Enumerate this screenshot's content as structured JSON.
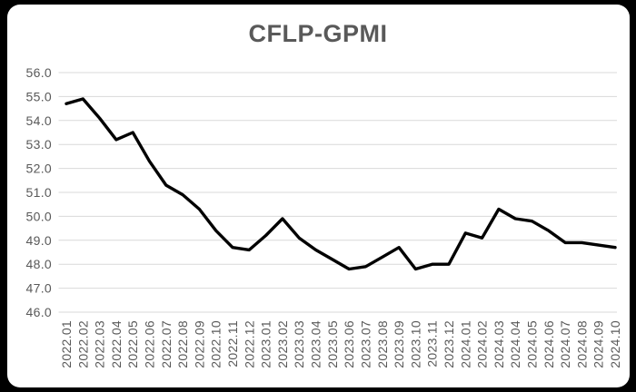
{
  "title": "CFLP-GPMI",
  "style": {
    "background": "#000000",
    "panel_background": "#ffffff",
    "title_color": "#595959",
    "tick_label_color": "#595959",
    "gridline_color": "#d9d9d9",
    "line_color": "#000000"
  },
  "chart_data": {
    "type": "line",
    "title": "CFLP-GPMI",
    "xlabel": "",
    "ylabel": "",
    "ylim": [
      46.0,
      56.0
    ],
    "ytick_step": 1.0,
    "ytick_labels": [
      "56.0",
      "55.0",
      "54.0",
      "53.0",
      "52.0",
      "51.0",
      "50.0",
      "49.0",
      "48.0",
      "47.0",
      "46.0"
    ],
    "grid": "horizontal",
    "legend": "none",
    "x_label_rotation": -90,
    "x": [
      "2022.01",
      "2022.02",
      "2022.03",
      "2022.04",
      "2022.05",
      "2022.06",
      "2022.07",
      "2022.08",
      "2022.09",
      "2022.10",
      "2022.11",
      "2022.12",
      "2023.01",
      "2023.02",
      "2023.03",
      "2023.04",
      "2023.05",
      "2023.06",
      "2023.07",
      "2023.08",
      "2023.09",
      "2023.10",
      "2023.11",
      "2023.12",
      "2024.01",
      "2024.02",
      "2024.03",
      "2024.04",
      "2024.05",
      "2024.06",
      "2024.07",
      "2024.08",
      "2024.09",
      "2024.10"
    ],
    "series": [
      {
        "name": "CFLP-GPMI",
        "values": [
          54.7,
          54.9,
          54.1,
          53.2,
          53.5,
          52.3,
          51.3,
          50.9,
          50.3,
          49.4,
          48.7,
          48.6,
          49.2,
          49.9,
          49.1,
          48.6,
          48.2,
          47.8,
          47.9,
          48.3,
          48.7,
          47.8,
          48.0,
          48.0,
          49.3,
          49.1,
          50.3,
          49.9,
          49.8,
          49.4,
          48.9,
          48.9,
          48.8,
          48.7
        ]
      }
    ]
  }
}
